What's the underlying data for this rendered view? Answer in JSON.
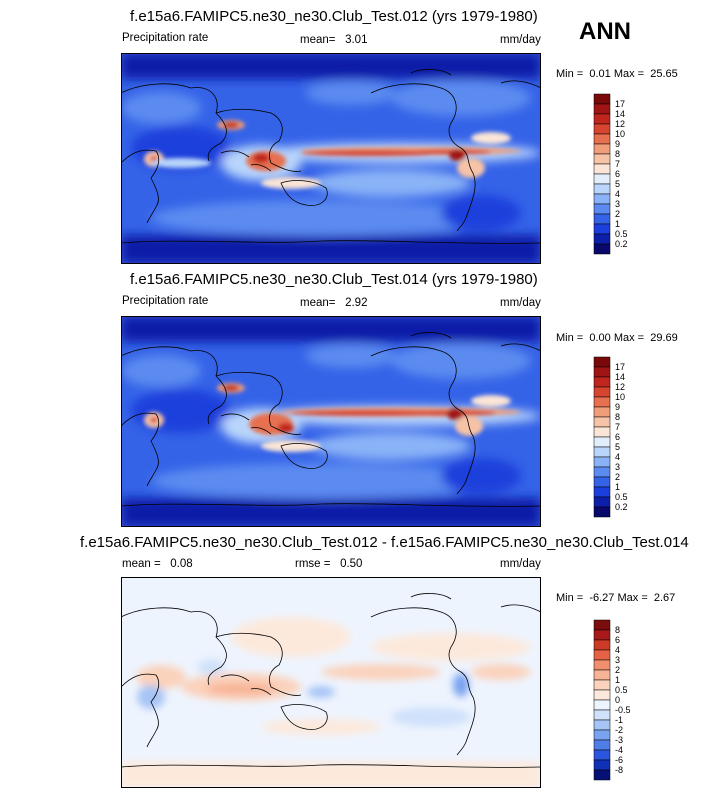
{
  "season": "ANN",
  "colors": {
    "precip_scale": [
      "#08096b",
      "#0d1fa8",
      "#1a3fdc",
      "#3563e8",
      "#5b8bf0",
      "#8ab3f7",
      "#b9d5fb",
      "#e3eefc",
      "#fbe5d6",
      "#f6c3a6",
      "#f09e7a",
      "#e6704f",
      "#d74430",
      "#c0261d",
      "#a11414",
      "#7a0a0a"
    ],
    "diff_scale": [
      "#071075",
      "#1130b8",
      "#2a55dc",
      "#4f7de8",
      "#79a2f0",
      "#a6c4f6",
      "#d0e1fb",
      "#eef4fe",
      "#fde9dc",
      "#fbd2bb",
      "#f7b395",
      "#f08f6d",
      "#e56246",
      "#cd3a28",
      "#a8191a",
      "#7c0d0d"
    ],
    "land": "#000000"
  },
  "chart_data": [
    {
      "type": "heatmap",
      "title": "f.e15a6.FAMIPC5.ne30_ne30.Club_Test.012 (yrs 1979-1980)",
      "left_label": "Precipitation rate",
      "mean_label": "mean=",
      "mean": "3.01",
      "units": "mm/day",
      "min_label": "Min =",
      "min": "0.01",
      "max_label": "Max =",
      "max": "25.65",
      "colorbar_ticks": [
        "17",
        "14",
        "12",
        "10",
        "9",
        "8",
        "7",
        "6",
        "5",
        "4",
        "3",
        "2",
        "1",
        "0.5",
        "0.2"
      ]
    },
    {
      "type": "heatmap",
      "title": "f.e15a6.FAMIPC5.ne30_ne30.Club_Test.014 (yrs 1979-1980)",
      "left_label": "Precipitation rate",
      "mean_label": "mean=",
      "mean": "2.92",
      "units": "mm/day",
      "min_label": "Min =",
      "min": "0.00",
      "max_label": "Max =",
      "max": "29.69",
      "colorbar_ticks": [
        "17",
        "14",
        "12",
        "10",
        "9",
        "8",
        "7",
        "6",
        "5",
        "4",
        "3",
        "2",
        "1",
        "0.5",
        "0.2"
      ]
    },
    {
      "type": "heatmap",
      "title": "f.e15a6.FAMIPC5.ne30_ne30.Club_Test.012 - f.e15a6.FAMIPC5.ne30_ne30.Club_Test.014",
      "mean_label": "mean =",
      "mean": "0.08",
      "rmse_label": "rmse =",
      "rmse": "0.50",
      "units": "mm/day",
      "min_label": "Min =",
      "min": "-6.27",
      "max_label": "Max =",
      "max": "2.67",
      "colorbar_ticks": [
        "8",
        "6",
        "4",
        "3",
        "2",
        "1",
        "0.5",
        "0",
        "-0.5",
        "-1",
        "-2",
        "-3",
        "-4",
        "-6",
        "-8"
      ]
    }
  ]
}
